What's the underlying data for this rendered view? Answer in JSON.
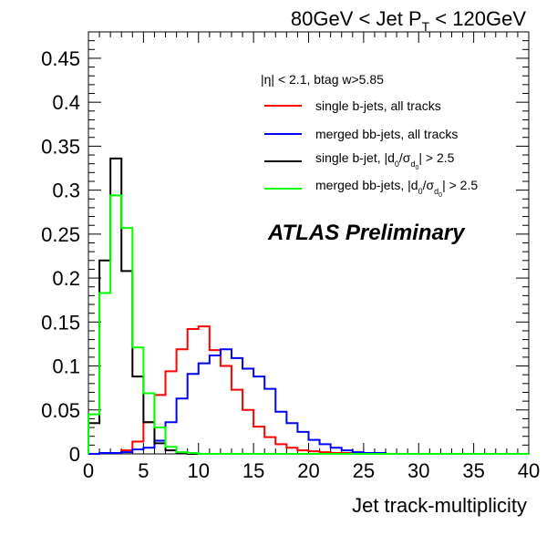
{
  "chart_data": {
    "type": "histogram",
    "title": "80GeV < Jet P_T < 120GeV",
    "title_parts": {
      "pre": "80GeV < Jet P",
      "sub": "T",
      "post": " < 120GeV"
    },
    "xlabel": "Jet track-multiplicity",
    "ylabel": "",
    "xlim": [
      0,
      40
    ],
    "ylim": [
      0,
      0.48
    ],
    "bin_width": 1,
    "x_ticks": [
      "0",
      "5",
      "10",
      "15",
      "20",
      "25",
      "30",
      "35",
      "40"
    ],
    "y_ticks": [
      "0",
      "0.05",
      "0.1",
      "0.15",
      "0.2",
      "0.25",
      "0.3",
      "0.35",
      "0.4",
      "0.45"
    ],
    "cut_text": "|η| < 2.1, btag w>5.85",
    "watermark": "ATLAS Preliminary",
    "series": [
      {
        "name": "single b-jets, all tracks",
        "color": "#ff0000",
        "values": [
          0,
          0.001,
          0.001,
          0.004,
          0.014,
          0.036,
          0.067,
          0.094,
          0.119,
          0.142,
          0.145,
          0.118,
          0.1,
          0.073,
          0.05,
          0.031,
          0.019,
          0.011,
          0.007,
          0.004,
          0.003,
          0.002,
          0.001,
          0.001,
          0,
          0,
          0,
          0,
          0,
          0,
          0,
          0,
          0,
          0,
          0,
          0,
          0,
          0,
          0,
          0
        ]
      },
      {
        "name": "merged bb-jets, all tracks",
        "color": "#0000ff",
        "values": [
          0,
          0.001,
          0.001,
          0.002,
          0.005,
          0.007,
          0.015,
          0.036,
          0.063,
          0.091,
          0.103,
          0.112,
          0.119,
          0.109,
          0.097,
          0.088,
          0.074,
          0.048,
          0.035,
          0.025,
          0.016,
          0.011,
          0.007,
          0.004,
          0.002,
          0.001,
          0.001,
          0,
          0,
          0,
          0,
          0,
          0,
          0,
          0,
          0,
          0,
          0,
          0,
          0
        ]
      },
      {
        "name": "single b-jet, |d_0/σ_d0| > 2.5",
        "color": "#000000",
        "legend_parts": {
          "pre": "single b-jet, |d",
          "sub1": "0",
          "mid": "/σ",
          "sub2": "d",
          "sub3": "0",
          "post": "| > 2.5"
        },
        "values": [
          0.035,
          0.22,
          0.336,
          0.208,
          0.088,
          0.036,
          0.012,
          0.004,
          0.001,
          0,
          0,
          0,
          0,
          0,
          0,
          0,
          0,
          0,
          0,
          0,
          0,
          0,
          0,
          0,
          0,
          0,
          0,
          0,
          0,
          0,
          0,
          0,
          0,
          0,
          0,
          0,
          0,
          0,
          0,
          0
        ]
      },
      {
        "name": "merged bb-jets, |d_0/σ_d0| > 2.5",
        "color": "#00ff00",
        "legend_parts": {
          "pre": "merged bb-jets, |d",
          "sub1": "0",
          "mid": "/σ",
          "sub2": "d",
          "sub3": "0",
          "post": "| > 2.5"
        },
        "values": [
          0.045,
          0.183,
          0.294,
          0.257,
          0.121,
          0.069,
          0.03,
          0.008,
          0.002,
          0.001,
          0,
          0,
          0,
          0,
          0,
          0,
          0,
          0,
          0,
          0,
          0,
          0,
          0,
          0,
          0,
          0,
          0,
          0,
          0,
          0,
          0,
          0,
          0,
          0,
          0,
          0,
          0,
          0,
          0,
          0
        ]
      }
    ]
  }
}
